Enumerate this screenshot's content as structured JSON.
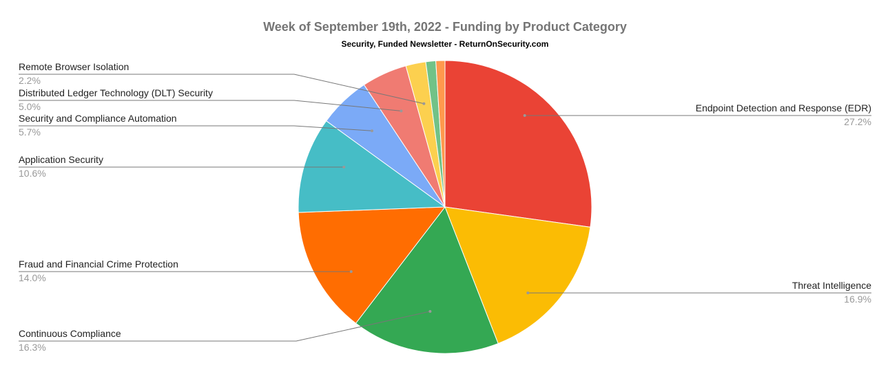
{
  "chart_data": {
    "type": "pie",
    "title": "Week of September 19th, 2022 - Funding by Product Category",
    "subtitle": "Security, Funded Newsletter - ReturnOnSecurity.com",
    "start_angle": "top, clockwise",
    "slices": [
      {
        "label": "Endpoint Detection and Response (EDR)",
        "value": 27.2,
        "pct_label": "27.2%",
        "color": "#ea4335"
      },
      {
        "label": "Threat Intelligence",
        "value": 16.9,
        "pct_label": "16.9%",
        "color": "#fbbc04"
      },
      {
        "label": "Continuous Compliance",
        "value": 16.3,
        "pct_label": "16.3%",
        "color": "#34a853"
      },
      {
        "label": "Fraud and Financial Crime Protection",
        "value": 14.0,
        "pct_label": "14.0%",
        "color": "#ff6d01"
      },
      {
        "label": "Application Security",
        "value": 10.6,
        "pct_label": "10.6%",
        "color": "#46bdc6"
      },
      {
        "label": "Security and Compliance Automation",
        "value": 5.7,
        "pct_label": "5.7%",
        "color": "#7baaf7"
      },
      {
        "label": "Distributed Ledger Technology (DLT) Security",
        "value": 5.0,
        "pct_label": "5.0%",
        "color": "#f07b72"
      },
      {
        "label": "Remote Browser Isolation",
        "value": 2.2,
        "pct_label": "2.2%",
        "color": "#fcd04f"
      },
      {
        "label": "",
        "value": 1.1,
        "color": "#71c287"
      },
      {
        "label": "",
        "value": 1.0,
        "color": "#ff994d"
      }
    ]
  }
}
